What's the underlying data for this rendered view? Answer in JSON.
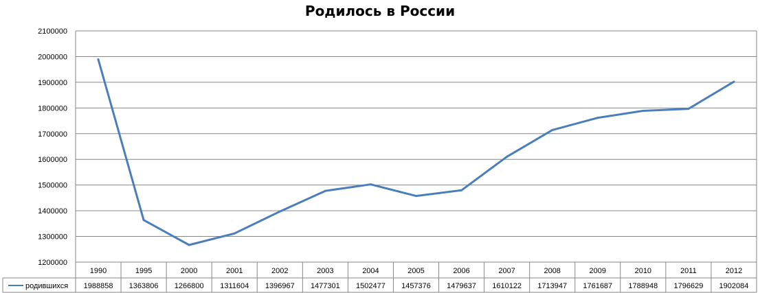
{
  "chart_data": {
    "type": "line",
    "title": "Родилось в России",
    "xlabel": "",
    "ylabel": "",
    "categories": [
      "1990",
      "1995",
      "2000",
      "2001",
      "2002",
      "2003",
      "2004",
      "2005",
      "2006",
      "2007",
      "2008",
      "2009",
      "2010",
      "2011",
      "2012"
    ],
    "series": [
      {
        "name": "родившихся",
        "values": [
          1988858,
          1363806,
          1266800,
          1311604,
          1396967,
          1477301,
          1502477,
          1457376,
          1479637,
          1610122,
          1713947,
          1761687,
          1788948,
          1796629,
          1902084
        ],
        "labels": [
          "1988858",
          "1363806",
          "1266800",
          "1311604",
          "1396967",
          "1477301",
          "1502477",
          "1457376",
          "1479637",
          "1610122",
          "1713947",
          "1761687",
          "1788948",
          "1796629",
          "1902084"
        ]
      }
    ],
    "ylim": [
      1200000,
      2100000
    ],
    "yticks": [
      "1200000",
      "1300000",
      "1400000",
      "1500000",
      "1600000",
      "1700000",
      "1800000",
      "1900000",
      "2000000",
      "2100000"
    ],
    "grid": true,
    "legend": "data-table",
    "colors": {
      "line": "#4a7ebb",
      "grid": "#868686"
    }
  }
}
